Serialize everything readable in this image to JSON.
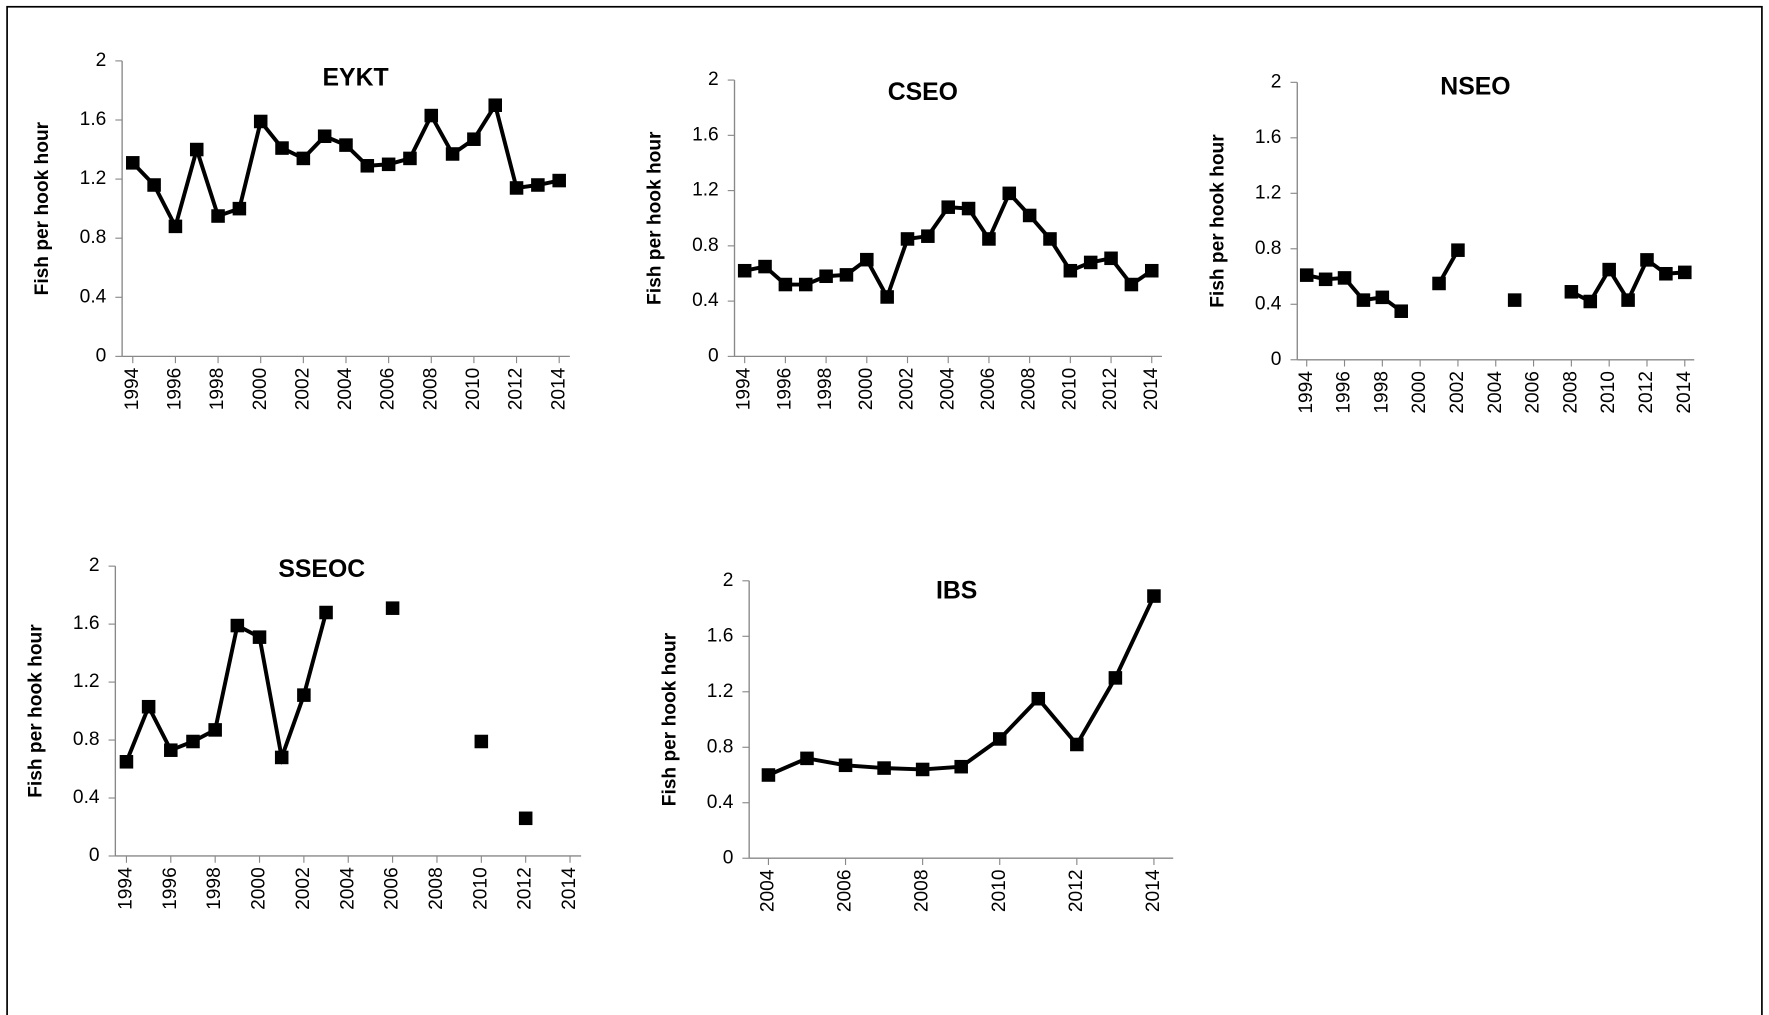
{
  "chart_data": [
    {
      "type": "line",
      "title": "EYKT",
      "y_label": "Fish per hook hour",
      "x": [
        1994,
        1995,
        1996,
        1997,
        1998,
        1999,
        2000,
        2001,
        2002,
        2003,
        2004,
        2005,
        2006,
        2007,
        2008,
        2009,
        2010,
        2011,
        2012,
        2013,
        2014
      ],
      "series": [
        {
          "color": "#000000",
          "values": [
            1.31,
            1.16,
            0.88,
            1.4,
            0.95,
            1.0,
            1.59,
            1.41,
            1.34,
            1.49,
            1.43,
            1.29,
            1.3,
            1.34,
            1.63,
            1.37,
            1.47,
            1.7,
            1.14,
            1.16,
            1.19
          ]
        }
      ],
      "xlim": [
        1993.5,
        2014.5
      ],
      "xticks": [
        1994,
        1996,
        1998,
        2000,
        2002,
        2004,
        2006,
        2008,
        2010,
        2012,
        2014
      ],
      "ylim": [
        0,
        2
      ],
      "yticks": [
        0,
        0.4,
        0.8,
        1.2,
        1.6,
        2
      ]
    },
    {
      "type": "line",
      "title": "CSEO",
      "y_label": "Fish per hook hour",
      "x": [
        1994,
        1995,
        1996,
        1997,
        1998,
        1999,
        2000,
        2001,
        2002,
        2003,
        2004,
        2005,
        2006,
        2007,
        2008,
        2009,
        2010,
        2011,
        2012,
        2013,
        2014
      ],
      "series": [
        {
          "color": "#000000",
          "values": [
            0.62,
            0.65,
            0.52,
            0.52,
            0.58,
            0.59,
            0.7,
            0.43,
            0.85,
            0.87,
            1.08,
            1.07,
            0.85,
            1.18,
            1.02,
            0.85,
            0.62,
            0.68,
            0.71,
            0.52,
            0.62
          ]
        }
      ],
      "xlim": [
        1993.5,
        2014.5
      ],
      "xticks": [
        1994,
        1996,
        1998,
        2000,
        2002,
        2004,
        2006,
        2008,
        2010,
        2012,
        2014
      ],
      "ylim": [
        0,
        2
      ],
      "yticks": [
        0,
        0.4,
        0.8,
        1.2,
        1.6,
        2
      ]
    },
    {
      "type": "line",
      "title": "NSEO",
      "y_label": "Fish per hook hour",
      "x": [
        1994,
        1995,
        1996,
        1997,
        1998,
        1999,
        2000,
        2001,
        2002,
        2003,
        2004,
        2005,
        2006,
        2007,
        2008,
        2009,
        2010,
        2011,
        2012,
        2013,
        2014
      ],
      "series": [
        {
          "color": "#000000",
          "values": [
            0.61,
            0.58,
            0.59,
            0.43,
            0.45,
            0.35,
            null,
            0.55,
            0.79,
            null,
            null,
            0.43,
            null,
            null,
            0.49,
            0.42,
            0.65,
            0.43,
            0.72,
            0.62,
            0.63
          ]
        }
      ],
      "xlim": [
        1993.5,
        2014.5
      ],
      "xticks": [
        1994,
        1996,
        1998,
        2000,
        2002,
        2004,
        2006,
        2008,
        2010,
        2012,
        2014
      ],
      "ylim": [
        0,
        2
      ],
      "yticks": [
        0,
        0.4,
        0.8,
        1.2,
        1.6,
        2
      ]
    },
    {
      "type": "line",
      "title": "SSEOC",
      "y_label": "Fish per hook hour",
      "x": [
        1994,
        1995,
        1996,
        1997,
        1998,
        1999,
        2000,
        2001,
        2002,
        2003,
        2004,
        2005,
        2006,
        2007,
        2008,
        2009,
        2010,
        2011,
        2012
      ],
      "series": [
        {
          "color": "#000000",
          "values": [
            0.65,
            1.03,
            0.73,
            0.79,
            0.87,
            1.59,
            1.51,
            0.68,
            1.11,
            1.68,
            null,
            null,
            1.71,
            null,
            null,
            null,
            0.79,
            null,
            0.26
          ]
        }
      ],
      "xlim": [
        1993.5,
        2014.5
      ],
      "xticks": [
        1994,
        1996,
        1998,
        2000,
        2002,
        2004,
        2006,
        2008,
        2010,
        2012,
        2014
      ],
      "ylim": [
        0,
        2
      ],
      "yticks": [
        0,
        0.4,
        0.8,
        1.2,
        1.6,
        2
      ]
    },
    {
      "type": "line",
      "title": "IBS",
      "y_label": "Fish per hook hour",
      "x": [
        2004,
        2005,
        2006,
        2007,
        2008,
        2009,
        2010,
        2011,
        2012,
        2013,
        2014
      ],
      "series": [
        {
          "color": "#000000",
          "values": [
            0.6,
            0.72,
            0.67,
            0.65,
            0.64,
            0.66,
            0.86,
            1.15,
            0.82,
            1.3,
            1.89
          ]
        }
      ],
      "xlim": [
        2003.5,
        2014.5
      ],
      "xticks": [
        2004,
        2006,
        2008,
        2010,
        2012,
        2014
      ],
      "ylim": [
        0,
        2
      ],
      "yticks": [
        0,
        0.4,
        0.8,
        1.2,
        1.6,
        2
      ]
    }
  ]
}
